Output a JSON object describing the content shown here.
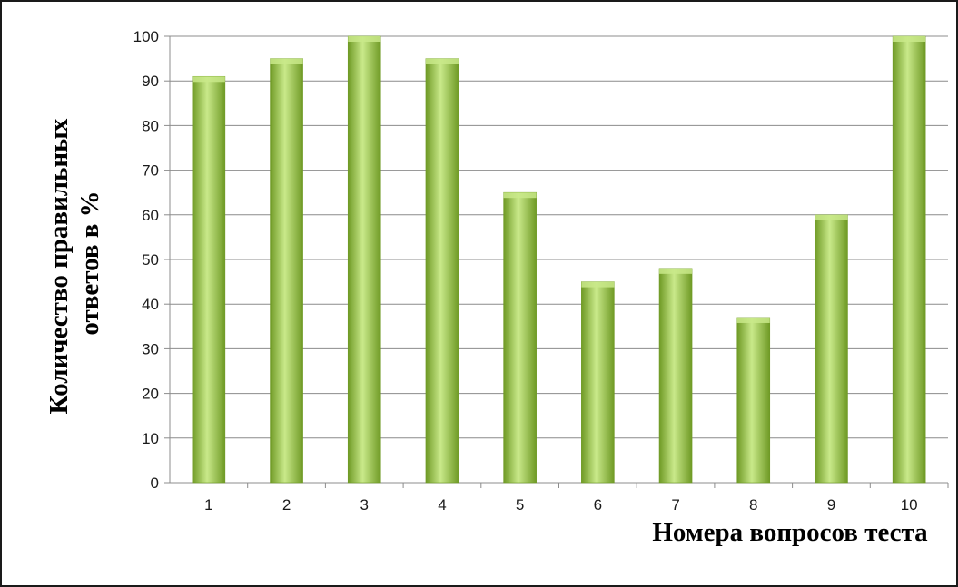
{
  "chart_data": {
    "type": "bar",
    "categories": [
      "1",
      "2",
      "3",
      "4",
      "5",
      "6",
      "7",
      "8",
      "9",
      "10"
    ],
    "values": [
      91,
      95,
      100,
      95,
      65,
      45,
      48,
      37,
      60,
      100
    ],
    "ylim": [
      0,
      100
    ],
    "yticks": [
      "0",
      "10",
      "20",
      "30",
      "40",
      "50",
      "60",
      "70",
      "80",
      "90",
      "100"
    ],
    "ylabel_line1": "Количество правильных",
    "ylabel_line2": "ответов в %",
    "xlabel": "Номера вопросов теста",
    "grid": true,
    "legend": "none",
    "bar_color": "#9bc544",
    "bar_highlight": "#c9e98a",
    "bar_shadow": "#6f9a25"
  }
}
